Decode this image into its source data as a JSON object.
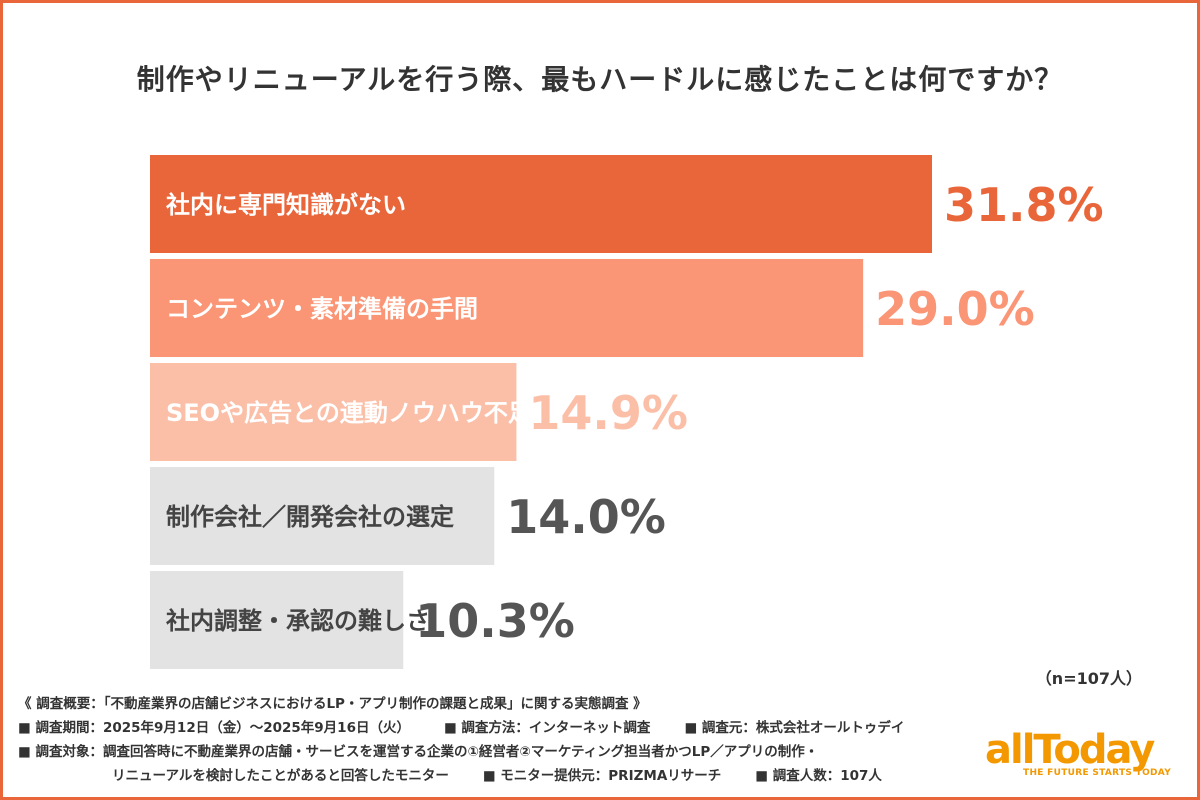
{
  "chart_data": {
    "type": "bar",
    "orientation": "horizontal",
    "title": "制作やリニューアルを行う際、最もハードルに感じたことは何ですか？",
    "categories": [
      "社内に専門知識がない",
      "コンテンツ・素材準備の手間",
      "SEOや広告との連動ノウハウ不足",
      "制作会社／開発会社の選定",
      "社内調整・承認の難しさ"
    ],
    "values": [
      31.8,
      29.0,
      14.9,
      14.0,
      10.3
    ],
    "value_labels": [
      "31.8%",
      "29.0%",
      "14.9%",
      "14.0%",
      "10.3%"
    ],
    "bar_colors": [
      "#e9663a",
      "#fa9575",
      "#fbbfa8",
      "#e3e3e4",
      "#e3e3e4"
    ],
    "value_colors": [
      "#e9663a",
      "#fa9575",
      "#fbbfa8",
      "#555555",
      "#555555"
    ],
    "xlim": [
      0,
      40
    ],
    "grid": false,
    "sample_note": "（n=107人）"
  },
  "footer": {
    "line1": "《 調査概要：「不動産業界の店舗ビジネスにおけるLP・アプリ制作の課題と成果」に関する実態調査 》",
    "period": "■ 調査期間：2025年9月12日（金）～2025年9月16日（火）",
    "method": "■ 調査方法：インターネット調査",
    "source": "■ 調査元：株式会社オールトゥデイ",
    "target1": "■ 調査対象：調査回答時に不動産業界の店舗・サービスを運営する企業の①経営者②マーケティング担当者かつLP／アプリの制作・",
    "target2": "リニューアルを検討したことがあると回答したモニター",
    "provider": "■ モニター提供元：PRIZMAリサーチ",
    "count": "■ 調査人数：107人"
  },
  "logo": {
    "word": "allToday",
    "tagline": "THE FUTURE STARTS TODAY",
    "color": "#f39800"
  }
}
